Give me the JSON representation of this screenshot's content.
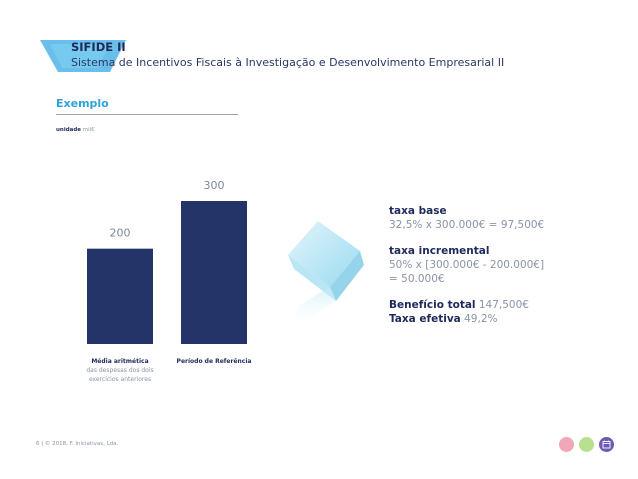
{
  "header": {
    "title": "SIFIDE II",
    "subtitle": "Sistema de Incentivos Fiscais à Investigação e Desenvolvimento Empresarial II"
  },
  "section": {
    "label": "Exemplo",
    "unit_prefix": "unidade",
    "unit": "mil€"
  },
  "chart_data": {
    "type": "bar",
    "title": "",
    "xlabel": "",
    "ylabel": "",
    "ylim": [
      0,
      300
    ],
    "grid": false,
    "legend": "none",
    "bar_color": "#243368",
    "categories": [
      {
        "main": "Média aritmética",
        "sub1": "das despesas dos dois",
        "sub2": "exercícios anteriores"
      },
      {
        "main": "Período de Referência",
        "sub1": "",
        "sub2": ""
      }
    ],
    "values": [
      200,
      300
    ],
    "value_labels": [
      "200",
      "300"
    ]
  },
  "calc": {
    "base_title": "taxa base",
    "base_line": "32,5% x 300.000€ = 97,500€",
    "inc_title": "taxa incremental",
    "inc_line1": "50% x [300.000€ - 200.000€]",
    "inc_line2": "= 50.000€",
    "total_label": "Benefício total",
    "total_value": "147,500€",
    "rate_label": "Taxa efetiva",
    "rate_value": "49,2%"
  },
  "footer": {
    "text": "6 | © 2018, F. Iniciativas, Lda."
  },
  "colors": {
    "navy": "#243368",
    "accent_blue": "#2ea3d9",
    "ribbon": "#4fb3e6",
    "dot_pink": "#f2a7b8",
    "dot_green": "#b9e08f",
    "dot_purple": "#6b5bb5"
  },
  "icons": [
    "ribbon-decoration",
    "cube-illustration",
    "pink-dot-icon",
    "green-dot-icon",
    "calendar-icon"
  ]
}
